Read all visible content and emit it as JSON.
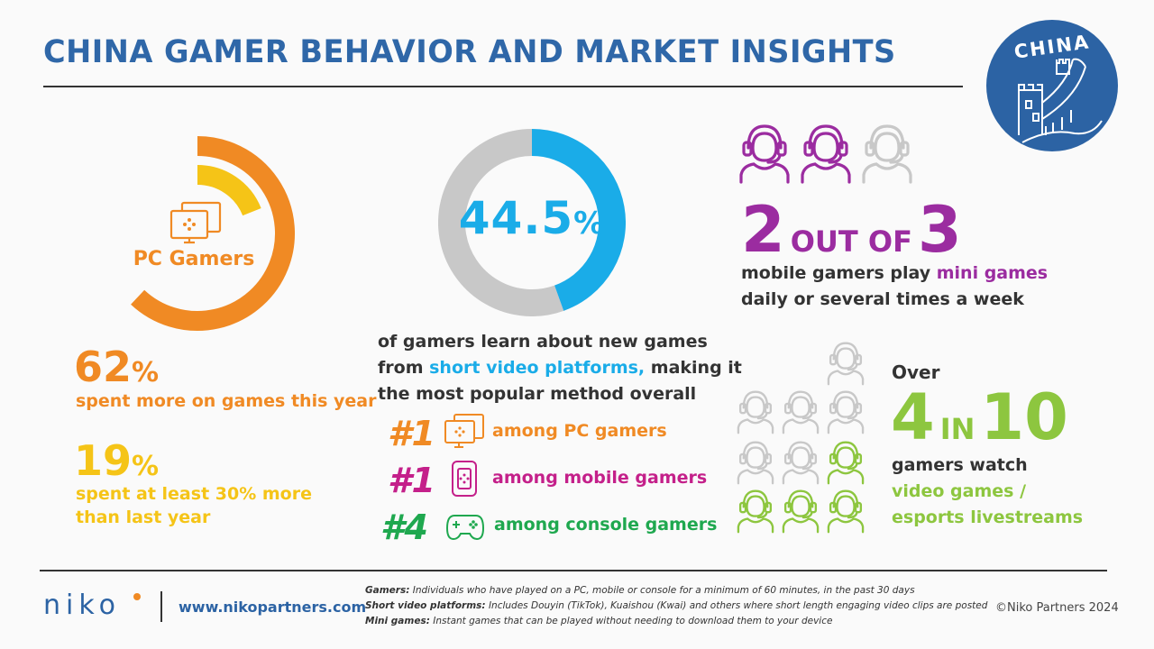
{
  "title": "CHINA GAMER BEHAVIOR AND MARKET INSIGHTS",
  "badge": {
    "text": "CHINA",
    "color": "#2c63a4"
  },
  "colors": {
    "blue": "#2f67a8",
    "orange": "#f08a24",
    "yellow": "#f5c417",
    "cyan": "#1aace8",
    "magenta": "#c4208a",
    "green": "#1fa84f",
    "purple": "#9b2ca0",
    "light_green": "#8dc63f",
    "gray": "#c8c8c8"
  },
  "pc_gamers": {
    "label": "PC Gamers",
    "icon": "pc-monitor-icon",
    "ring_outer_fraction": 0.62,
    "ring_inner_fraction": 0.19,
    "stat1": {
      "value": "62",
      "unit": "%",
      "text": "spent more on games this year"
    },
    "stat2": {
      "value": "19",
      "unit": "%",
      "text_line1": "spent at least 30% more",
      "text_line2": "than last year"
    }
  },
  "short_video": {
    "value": "44.5",
    "unit": "%",
    "fraction": 0.445,
    "desc_line1": "of gamers learn about new games",
    "desc_line2_pre": "from ",
    "desc_line2_hl": "short video platforms,",
    "desc_line2_post": " making it",
    "desc_line3": "the most popular method overall",
    "ranks": [
      {
        "rank": "#1",
        "text": "among PC gamers",
        "icon": "pc-monitor-icon"
      },
      {
        "rank": "#1",
        "text": "among mobile gamers",
        "icon": "smartphone-icon"
      },
      {
        "rank": "#4",
        "text": "among console gamers",
        "icon": "gamepad-icon"
      }
    ]
  },
  "mini_games": {
    "num1": "2",
    "mid": "OUT OF",
    "num2": "3",
    "filled": 2,
    "total": 3,
    "icon": "headset-gamer-icon",
    "line1_pre": "mobile gamers play ",
    "line1_hl": "mini games",
    "line2": "daily or several times a week"
  },
  "livestream": {
    "over": "Over",
    "num1": "4",
    "mid": "IN",
    "num2": "10",
    "filled": 4,
    "total": 10,
    "line1": "gamers watch",
    "line2": "video games /",
    "line3": "esports livestreams"
  },
  "footer": {
    "logo": "niko",
    "site": "www.nikopartners.com",
    "notes": [
      {
        "term": "Gamers:",
        "def": " Individuals who have played on a PC, mobile or console for a minimum of 60 minutes, in the past 30 days"
      },
      {
        "term": "Short video platforms:",
        "def": " Includes Douyin (TikTok), Kuaishou (Kwai) and others where short length engaging video clips are posted"
      },
      {
        "term": "Mini games:",
        "def": " Instant games that can be played without needing to download them to your device"
      }
    ],
    "copyright": "©Niko Partners 2024"
  }
}
